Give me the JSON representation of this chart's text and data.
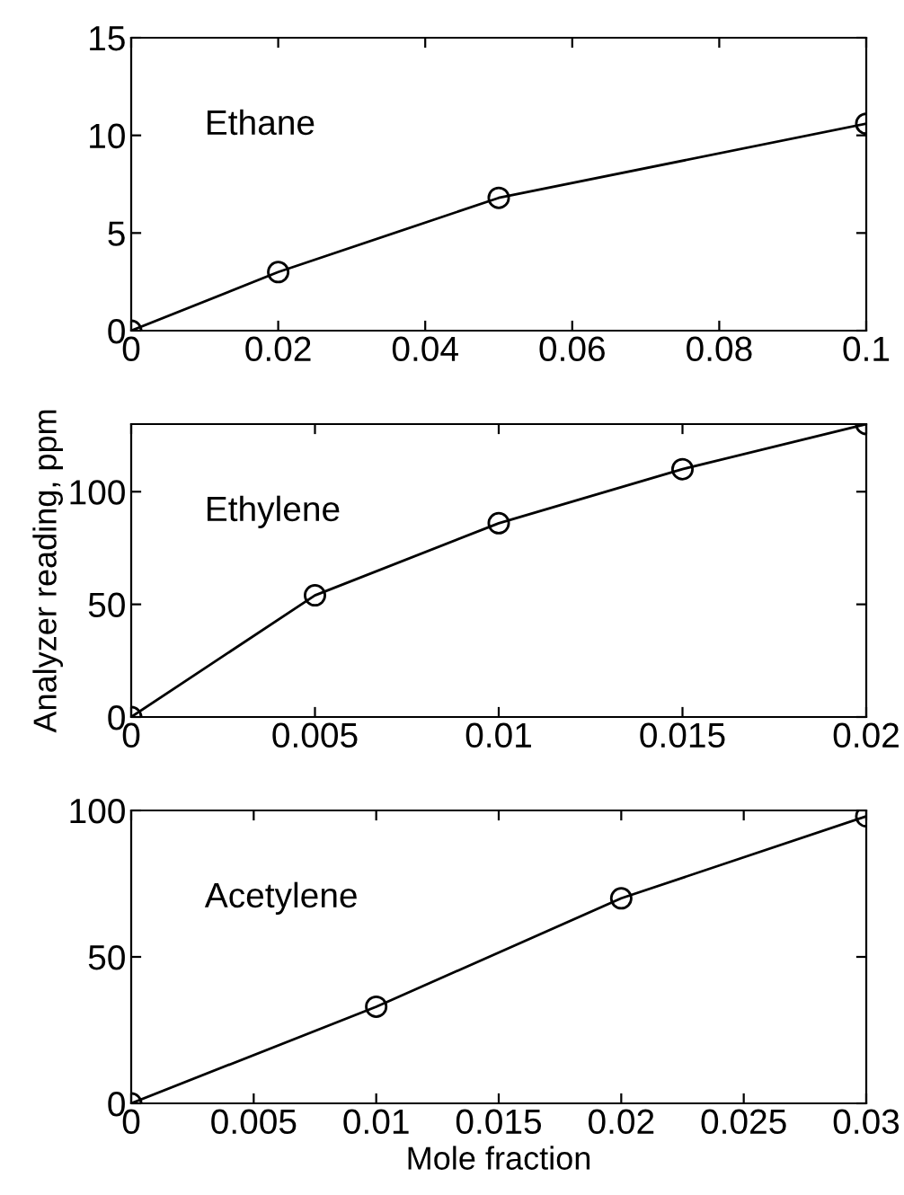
{
  "chart_data": [
    {
      "type": "line",
      "x": [
        0,
        0.02,
        0.05,
        0.1
      ],
      "values": [
        0,
        3.0,
        6.8,
        10.6
      ],
      "color": "#000000",
      "marker": "circle",
      "line_style": "solid",
      "xlim": [
        0,
        0.1
      ],
      "ylim": [
        0,
        15
      ],
      "xticks": [
        0,
        0.02,
        0.04,
        0.06,
        0.08,
        0.1
      ],
      "yticks": [
        0,
        5,
        10,
        15
      ],
      "grid": false,
      "annotations": [
        "Ethane"
      ]
    },
    {
      "type": "line",
      "x": [
        0,
        0.005,
        0.01,
        0.015,
        0.02
      ],
      "values": [
        0,
        54,
        86,
        110,
        130
      ],
      "color": "#000000",
      "marker": "circle",
      "line_style": "solid",
      "xlim": [
        0,
        0.02
      ],
      "ylim": [
        0,
        130
      ],
      "xticks": [
        0,
        0.005,
        0.01,
        0.015,
        0.02
      ],
      "yticks": [
        0,
        50,
        100
      ],
      "grid": false,
      "ylabel": "Analyzer reading, ppm",
      "annotations": [
        "Ethylene"
      ]
    },
    {
      "type": "line",
      "x": [
        0,
        0.01,
        0.02,
        0.03
      ],
      "values": [
        0,
        33,
        70,
        98
      ],
      "color": "#000000",
      "marker": "circle",
      "line_style": "solid",
      "xlim": [
        0,
        0.03
      ],
      "ylim": [
        0,
        100
      ],
      "xticks": [
        0,
        0.005,
        0.01,
        0.015,
        0.02,
        0.025,
        0.03
      ],
      "yticks": [
        0,
        50,
        100
      ],
      "grid": false,
      "xlabel": "Mole fraction",
      "annotations": [
        "Acetylene"
      ]
    }
  ]
}
